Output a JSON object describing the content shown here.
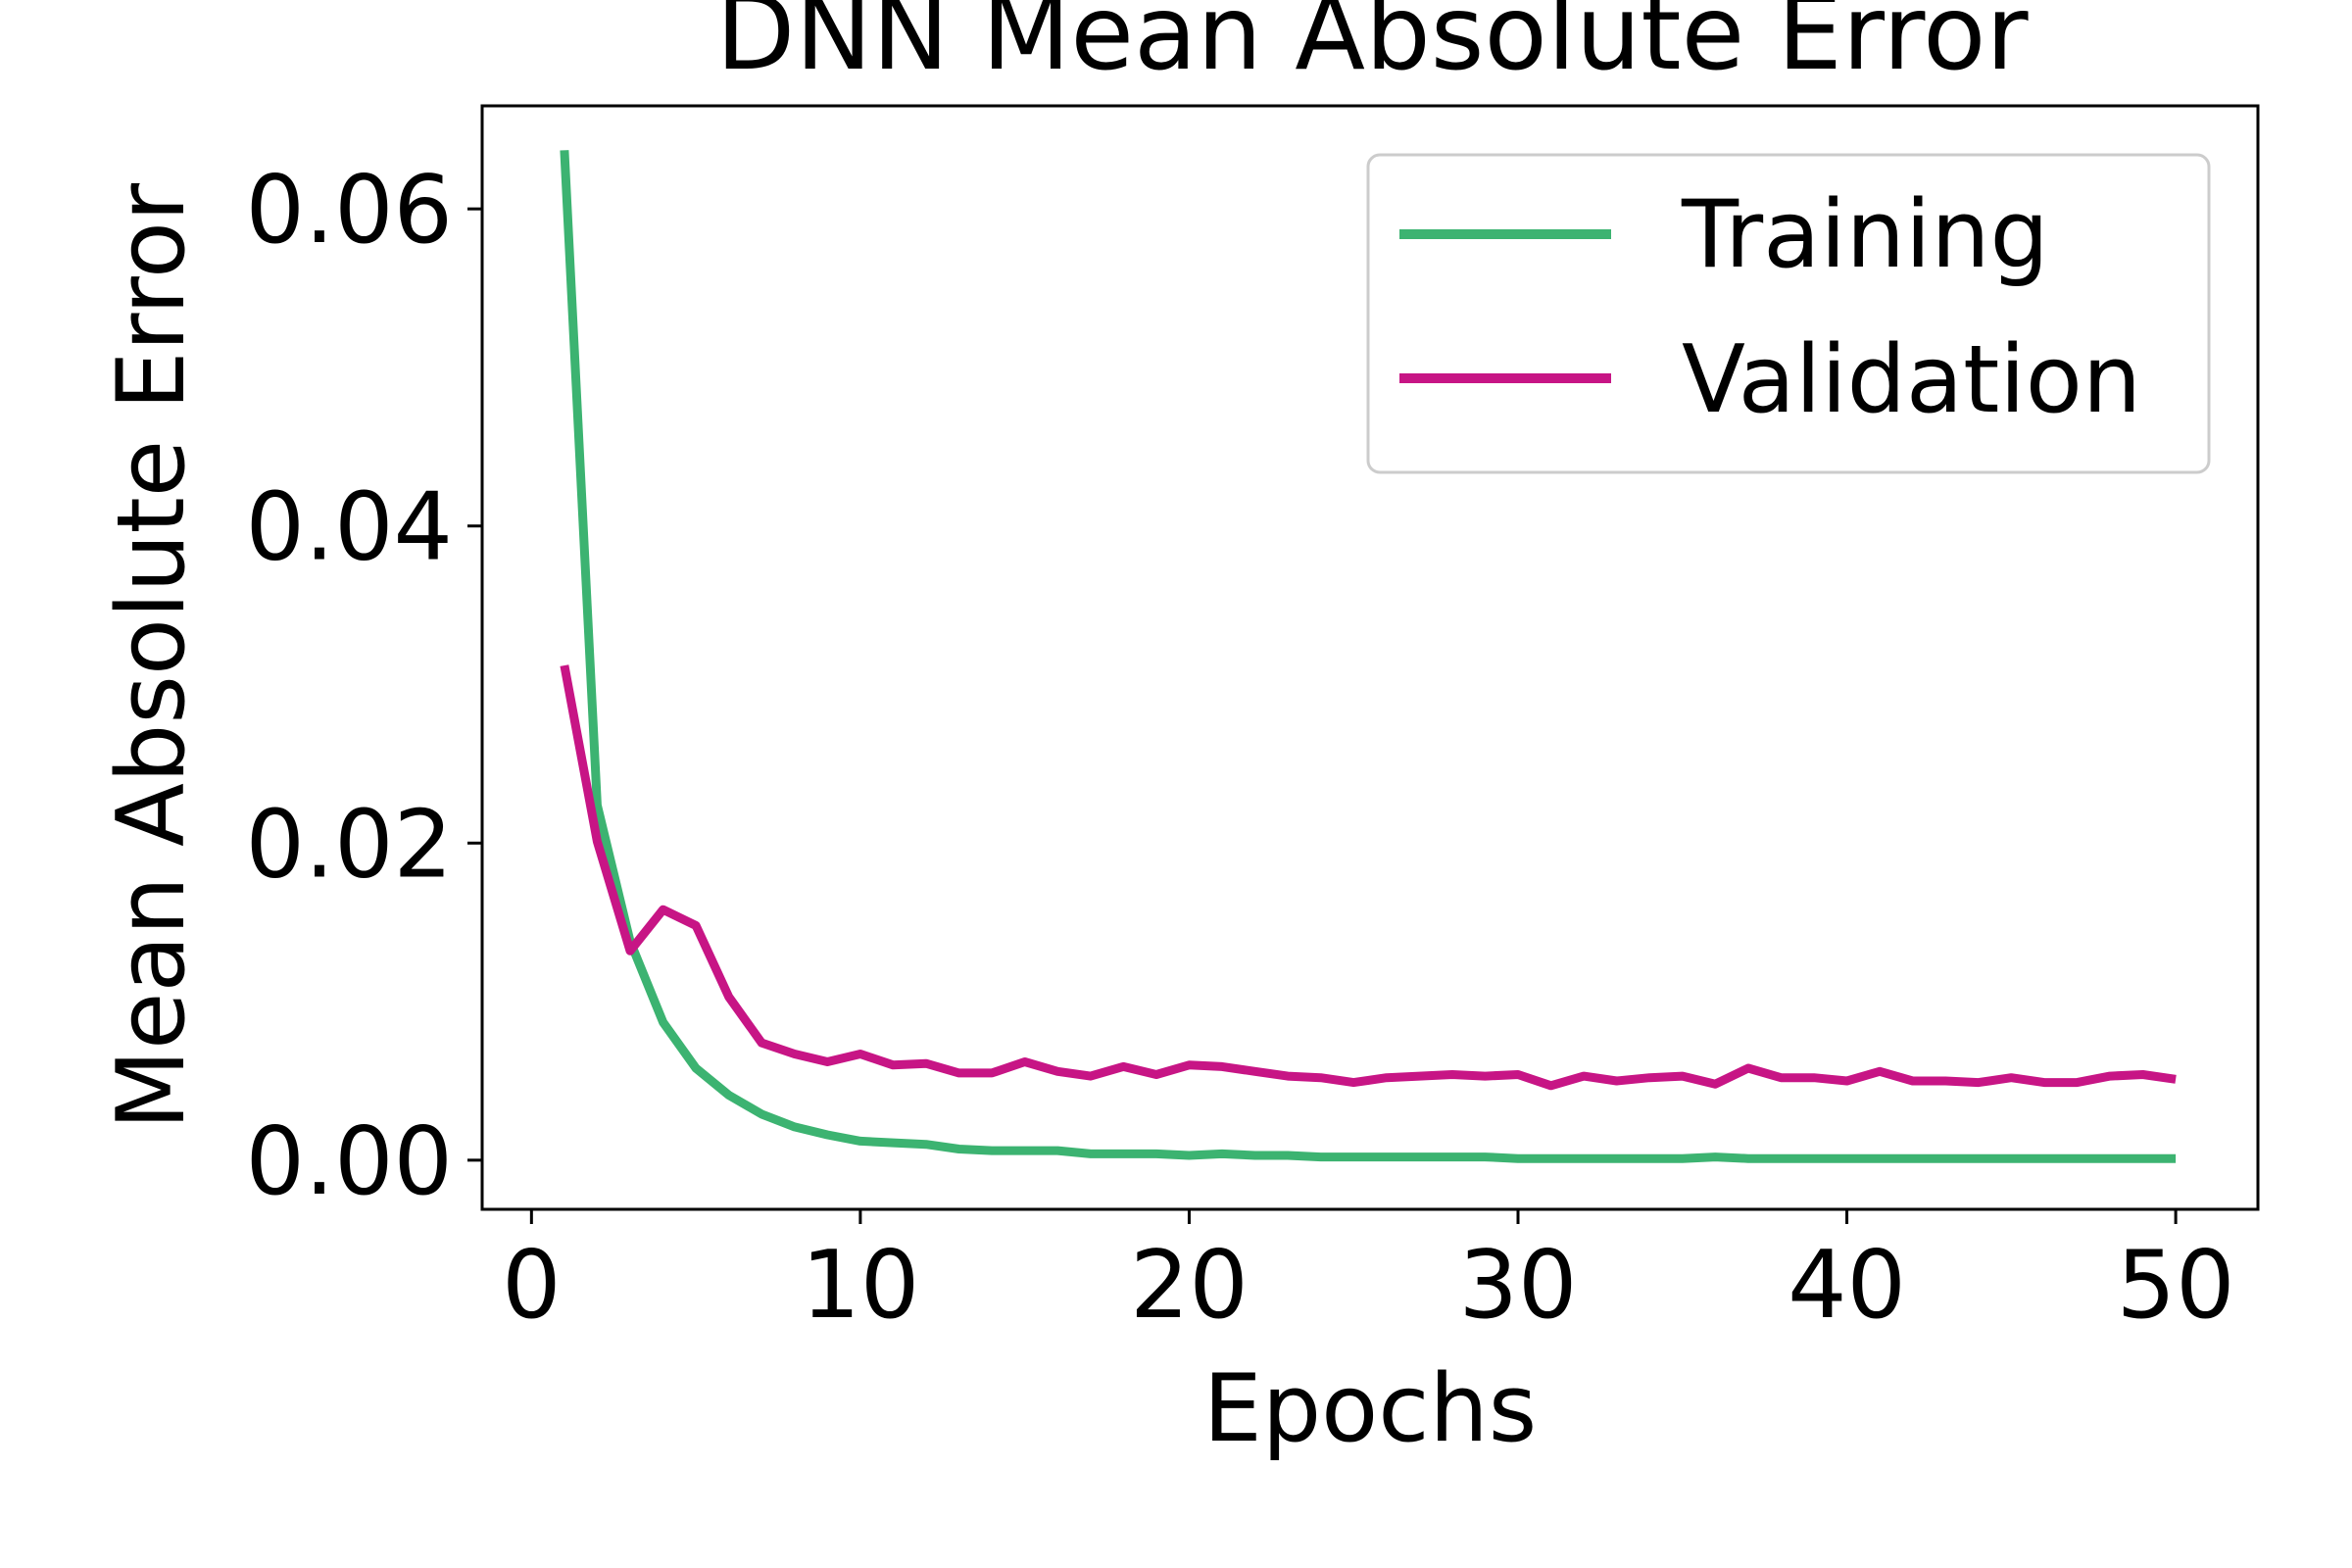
{
  "chart_data": {
    "type": "line",
    "title": "DNN Mean Absolute Error",
    "xlabel": "Epochs",
    "ylabel": "Mean Absolute Error",
    "xlim": [
      -1.5,
      52.5
    ],
    "ylim": [
      -0.0031,
      0.0665
    ],
    "xticks": [
      0,
      10,
      20,
      30,
      40,
      50
    ],
    "xtick_labels": [
      "0",
      "10",
      "20",
      "30",
      "40",
      "50"
    ],
    "yticks": [
      0.0,
      0.02,
      0.04,
      0.06
    ],
    "ytick_labels": [
      "0.00",
      "0.02",
      "0.04",
      "0.06"
    ],
    "grid": false,
    "legend_position": "top-right",
    "x": [
      1,
      2,
      3,
      4,
      5,
      6,
      7,
      8,
      9,
      10,
      11,
      12,
      13,
      14,
      15,
      16,
      17,
      18,
      19,
      20,
      21,
      22,
      23,
      24,
      25,
      26,
      27,
      28,
      29,
      30,
      31,
      32,
      33,
      34,
      35,
      36,
      37,
      38,
      39,
      40,
      41,
      42,
      43,
      44,
      45,
      46,
      47,
      48,
      49,
      50
    ],
    "series": [
      {
        "name": "Training",
        "color": "#3cb371",
        "values": [
          0.0637,
          0.0224,
          0.0138,
          0.0087,
          0.0058,
          0.0041,
          0.0029,
          0.0021,
          0.0016,
          0.0012,
          0.0011,
          0.001,
          0.0007,
          0.0006,
          0.0006,
          0.0006,
          0.0004,
          0.0004,
          0.0004,
          0.0003,
          0.0004,
          0.0003,
          0.0003,
          0.0002,
          0.0002,
          0.0002,
          0.0002,
          0.0002,
          0.0002,
          0.0001,
          0.0001,
          0.0001,
          0.0001,
          0.0001,
          0.0001,
          0.0002,
          0.0001,
          0.0001,
          0.0001,
          0.0001,
          0.0001,
          0.0001,
          0.0001,
          0.0001,
          0.0001,
          0.0001,
          0.0001,
          0.0001,
          0.0001,
          0.0001
        ]
      },
      {
        "name": "Validation",
        "color": "#c71585",
        "values": [
          0.0312,
          0.0201,
          0.0132,
          0.0158,
          0.0148,
          0.0103,
          0.0074,
          0.0067,
          0.0062,
          0.0067,
          0.006,
          0.0061,
          0.0055,
          0.0055,
          0.0062,
          0.0056,
          0.0053,
          0.0059,
          0.0054,
          0.006,
          0.0059,
          0.0056,
          0.0053,
          0.0052,
          0.0049,
          0.0052,
          0.0053,
          0.0054,
          0.0053,
          0.0054,
          0.0047,
          0.0053,
          0.005,
          0.0052,
          0.0053,
          0.0048,
          0.0058,
          0.0052,
          0.0052,
          0.005,
          0.0056,
          0.005,
          0.005,
          0.0049,
          0.0052,
          0.0049,
          0.0049,
          0.0053,
          0.0054,
          0.0051
        ]
      }
    ]
  }
}
